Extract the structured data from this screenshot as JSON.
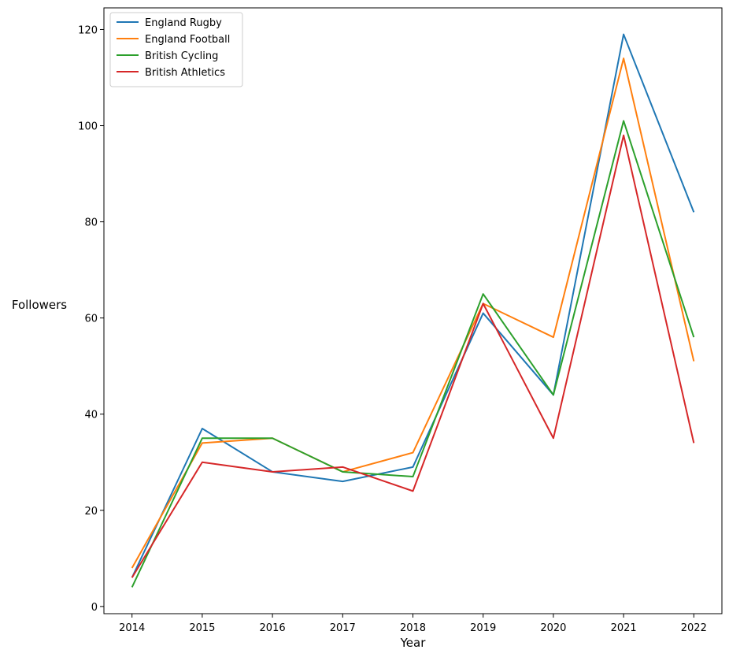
{
  "chart_data": {
    "type": "line",
    "title": "",
    "xlabel": "Year",
    "ylabel": "Followers",
    "x": [
      2014,
      2015,
      2016,
      2017,
      2018,
      2019,
      2020,
      2021,
      2022
    ],
    "xticks": [
      "2014",
      "2015",
      "2016",
      "2017",
      "2018",
      "2019",
      "2020",
      "2021",
      "2022"
    ],
    "yticks": [
      "0",
      "20",
      "40",
      "60",
      "80",
      "100",
      "120"
    ],
    "ylim": [
      -1.5,
      124.5
    ],
    "xlim": [
      2013.6,
      2022.4
    ],
    "grid": false,
    "legend_position": "top-left",
    "series": [
      {
        "name": "England Rugby",
        "color": "#1f77b4",
        "values": [
          6,
          37,
          28,
          26,
          29,
          61,
          44,
          119,
          82
        ]
      },
      {
        "name": "England Football",
        "color": "#ff7f0e",
        "values": [
          8,
          34,
          35,
          28,
          32,
          63,
          56,
          114,
          51
        ]
      },
      {
        "name": "British Cycling",
        "color": "#2ca02c",
        "values": [
          4,
          35,
          35,
          28,
          27,
          65,
          44,
          101,
          56
        ]
      },
      {
        "name": "British Athletics",
        "color": "#d62728",
        "values": [
          6,
          30,
          28,
          29,
          24,
          63,
          35,
          98,
          34
        ]
      }
    ]
  }
}
